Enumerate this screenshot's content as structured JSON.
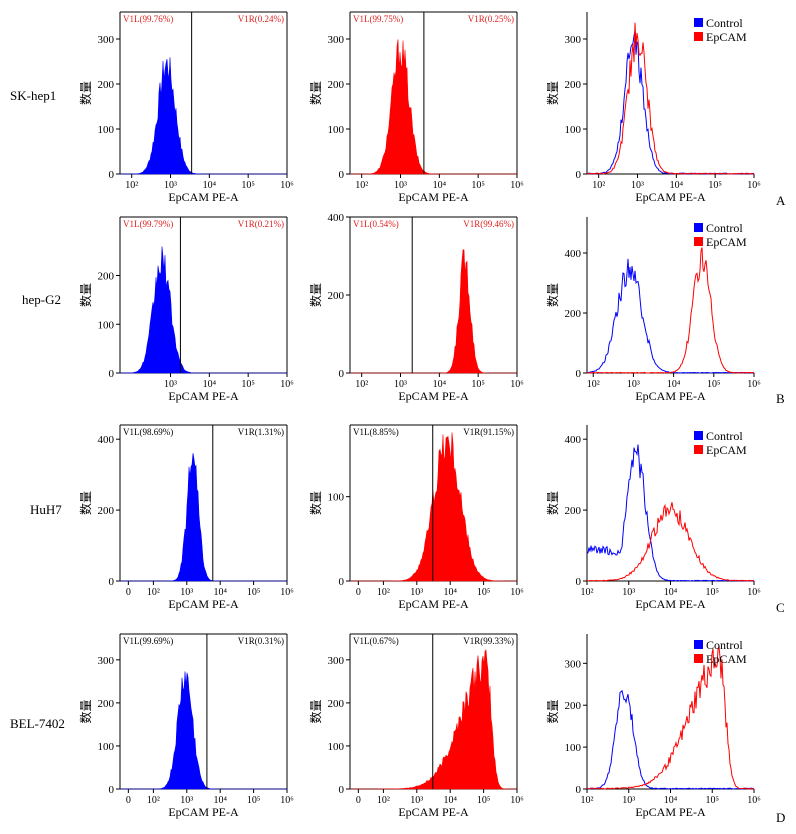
{
  "figure": {
    "y_label": "数量",
    "x_label": "EpCAM PE-A",
    "legend_labels": [
      "Control",
      "EpCAM"
    ],
    "colors": {
      "control": "#0000ff",
      "epcam": "#ff0000",
      "gate_text": "#e02020",
      "axis": "#000000"
    }
  },
  "rows": [
    {
      "cell_line": "SK-hep1",
      "panel_letter": "A"
    },
    {
      "cell_line": "hep-G2",
      "panel_letter": "B"
    },
    {
      "cell_line": "HuH7",
      "panel_letter": "C"
    },
    {
      "cell_line": "BEL-7402",
      "panel_letter": "D"
    }
  ],
  "chart_data": [
    {
      "type": "histogram",
      "row": "SK-hep1",
      "sample": "Control",
      "color": "#0000ff",
      "xlabel": "EpCAM PE-A",
      "ylabel": "数量",
      "x_scale": "log",
      "x_ticks": [
        "10²",
        "10³",
        "10⁴",
        "10⁵",
        "10⁶"
      ],
      "xlim": [
        50,
        1000000
      ],
      "ylim": [
        0,
        360
      ],
      "y_ticks": [
        0,
        100,
        200,
        300
      ],
      "peak_x": 800,
      "peak_count": 250,
      "spread": 0.22,
      "gate_x": 3500,
      "gate_left_label": "V1L(99.76%)",
      "gate_right_label": "V1R(0.24%)",
      "gate_label_color": "#e02020"
    },
    {
      "type": "histogram",
      "row": "SK-hep1",
      "sample": "EpCAM",
      "color": "#ff0000",
      "xlabel": "EpCAM PE-A",
      "ylabel": "数量",
      "x_scale": "log",
      "x_ticks": [
        "10²",
        "10³",
        "10⁴",
        "10⁵",
        "10⁶"
      ],
      "xlim": [
        50,
        1000000
      ],
      "ylim": [
        0,
        360
      ],
      "y_ticks": [
        0,
        100,
        200,
        300
      ],
      "peak_x": 1000,
      "peak_count": 285,
      "spread": 0.22,
      "gate_x": 4000,
      "gate_left_label": "V1L(99.75%)",
      "gate_right_label": "V1R(0.25%)",
      "gate_label_color": "#e02020"
    },
    {
      "type": "line",
      "row": "SK-hep1",
      "xlabel": "EpCAM PE-A",
      "ylabel": "数量",
      "x_scale": "log",
      "x_ticks": [
        "10²",
        "10³",
        "10⁴",
        "10⁵",
        "10⁶"
      ],
      "xlim": [
        50,
        1000000
      ],
      "ylim": [
        0,
        360
      ],
      "y_ticks": [
        0,
        100,
        200,
        300
      ],
      "legend": "top-right",
      "series": [
        {
          "name": "Control",
          "color": "#0000ff",
          "peak_x": 800,
          "peak_count": 290,
          "spread": 0.24
        },
        {
          "name": "EpCAM",
          "color": "#ff0000",
          "peak_x": 1000,
          "peak_count": 310,
          "spread": 0.24
        }
      ]
    },
    {
      "type": "histogram",
      "row": "hep-G2",
      "sample": "Control",
      "color": "#0000ff",
      "xlabel": "EpCAM PE-A",
      "ylabel": "数量",
      "x_scale": "log",
      "x_ticks": [
        "10³",
        "10⁴",
        "10⁵",
        "10⁶"
      ],
      "xlim": [
        50,
        1000000
      ],
      "ylim": [
        0,
        320
      ],
      "y_ticks": [
        0,
        100,
        200
      ],
      "peak_x": 600,
      "peak_count": 235,
      "spread": 0.22,
      "gate_x": 1800,
      "gate_left_label": "V1L(99.79%)",
      "gate_right_label": "V1R(0.21%)",
      "gate_label_color": "#e02020"
    },
    {
      "type": "histogram",
      "row": "hep-G2",
      "sample": "EpCAM",
      "color": "#ff0000",
      "xlabel": "EpCAM PE-A",
      "ylabel": "数量",
      "x_scale": "log",
      "x_ticks": [
        "10²",
        "10³",
        "10⁴",
        "10⁵",
        "10⁶"
      ],
      "xlim": [
        50,
        1000000
      ],
      "ylim": [
        0,
        400
      ],
      "y_ticks": [
        0,
        200,
        400
      ],
      "peak_x": 45000,
      "peak_count": 300,
      "spread": 0.14,
      "gate_x": 2000,
      "gate_left_label": "V1L(0.54%)",
      "gate_right_label": "V1R(99.46%)",
      "gate_label_color": "#e02020"
    },
    {
      "type": "line",
      "row": "hep-G2",
      "xlabel": "EpCAM PE-A",
      "ylabel": "数量",
      "x_scale": "log",
      "x_ticks": [
        "10²",
        "10³",
        "10⁴",
        "10⁵",
        "10⁶"
      ],
      "xlim": [
        70,
        1000000
      ],
      "ylim": [
        0,
        520
      ],
      "y_ticks": [
        0,
        200,
        400
      ],
      "legend": "top-right",
      "series": [
        {
          "name": "Control",
          "color": "#0000ff",
          "peak_x": 800,
          "peak_count": 355,
          "spread": 0.3
        },
        {
          "name": "EpCAM",
          "color": "#ff0000",
          "peak_x": 50000,
          "peak_count": 385,
          "spread": 0.22
        }
      ]
    },
    {
      "type": "histogram",
      "row": "HuH7",
      "sample": "Control",
      "color": "#0000ff",
      "xlabel": "EpCAM PE-A",
      "ylabel": "数量",
      "x_scale": "log",
      "x_ticks": [
        "0",
        "10²",
        "10³",
        "10⁴",
        "10⁵",
        "10⁶"
      ],
      "xlim": [
        10,
        1000000
      ],
      "ylim": [
        0,
        440
      ],
      "y_ticks": [
        0,
        200,
        400
      ],
      "peak_x": 1500,
      "peak_count": 355,
      "spread": 0.17,
      "gate_x": 6000,
      "gate_left_label": "V1L(98.69%)",
      "gate_right_label": "V1R(1.31%)",
      "gate_label_color": "#000000"
    },
    {
      "type": "histogram",
      "row": "HuH7",
      "sample": "EpCAM",
      "color": "#ff0000",
      "xlabel": "EpCAM PE-A",
      "ylabel": "数量",
      "x_scale": "log",
      "x_ticks": [
        "0",
        "10²",
        "10³",
        "10⁴",
        "10⁵",
        "10⁶"
      ],
      "xlim": [
        10,
        1000000
      ],
      "ylim": [
        0,
        185
      ],
      "y_ticks": [
        0,
        100
      ],
      "peak_x": 8000,
      "peak_count": 170,
      "spread": 0.4,
      "gate_x": 3000,
      "gate_left_label": "V1L(8.85%)",
      "gate_right_label": "V1R(91.15%)",
      "gate_label_color": "#000000"
    },
    {
      "type": "line",
      "row": "HuH7",
      "xlabel": "EpCAM PE-A",
      "ylabel": "数量",
      "x_scale": "log",
      "x_ticks": [
        "10²",
        "10³",
        "10⁴",
        "10⁵",
        "10⁶"
      ],
      "xlim": [
        100,
        1000000
      ],
      "ylim": [
        0,
        440
      ],
      "y_ticks": [
        0,
        200,
        400
      ],
      "legend": "top-right",
      "series": [
        {
          "name": "Control",
          "color": "#0000ff",
          "peak_x": 1500,
          "peak_count": 360,
          "spread": 0.22,
          "left_tail": 90
        },
        {
          "name": "EpCAM",
          "color": "#ff0000",
          "peak_x": 10000,
          "peak_count": 200,
          "spread": 0.45
        }
      ]
    },
    {
      "type": "histogram",
      "row": "BEL-7402",
      "sample": "Control",
      "color": "#0000ff",
      "xlabel": "EpCAM PE-A",
      "ylabel": "数量",
      "x_scale": "log",
      "x_ticks": [
        "0",
        "10²",
        "10³",
        "10⁴",
        "10⁵",
        "10⁶"
      ],
      "xlim": [
        10,
        1000000
      ],
      "ylim": [
        0,
        360
      ],
      "y_ticks": [
        0,
        100,
        200,
        300
      ],
      "peak_x": 900,
      "peak_count": 265,
      "spread": 0.22,
      "gate_x": 4000,
      "gate_left_label": "V1L(99.69%)",
      "gate_right_label": "V1R(0.31%)",
      "gate_label_color": "#000000"
    },
    {
      "type": "histogram",
      "row": "BEL-7402",
      "sample": "EpCAM",
      "color": "#ff0000",
      "xlabel": "EpCAM PE-A",
      "ylabel": "数量",
      "x_scale": "log",
      "x_ticks": [
        "0",
        "10²",
        "10³",
        "10⁴",
        "10⁵",
        "10⁶"
      ],
      "xlim": [
        10,
        1000000
      ],
      "ylim": [
        0,
        360
      ],
      "y_ticks": [
        0,
        100,
        200,
        300
      ],
      "peak_x": 120000,
      "peak_count": 295,
      "spread": 0.15,
      "left_skew": 0.6,
      "gate_x": 3000,
      "gate_left_label": "V1L(0.67%)",
      "gate_right_label": "V1R(99.33%)",
      "gate_label_color": "#000000"
    },
    {
      "type": "line",
      "row": "BEL-7402",
      "xlabel": "EpCAM PE-A",
      "ylabel": "数量",
      "x_scale": "log",
      "x_ticks": [
        "10²",
        "10³",
        "10⁴",
        "10⁵",
        "10⁶"
      ],
      "xlim": [
        100,
        1000000
      ],
      "ylim": [
        0,
        370
      ],
      "y_ticks": [
        0,
        100,
        200,
        300
      ],
      "legend": "top-right",
      "series": [
        {
          "name": "Control",
          "color": "#0000ff",
          "peak_x": 800,
          "peak_count": 245,
          "spread": 0.2
        },
        {
          "name": "EpCAM",
          "color": "#ff0000",
          "peak_x": 150000,
          "peak_count": 310,
          "spread": 0.14,
          "left_skew": 0.55
        }
      ]
    }
  ]
}
